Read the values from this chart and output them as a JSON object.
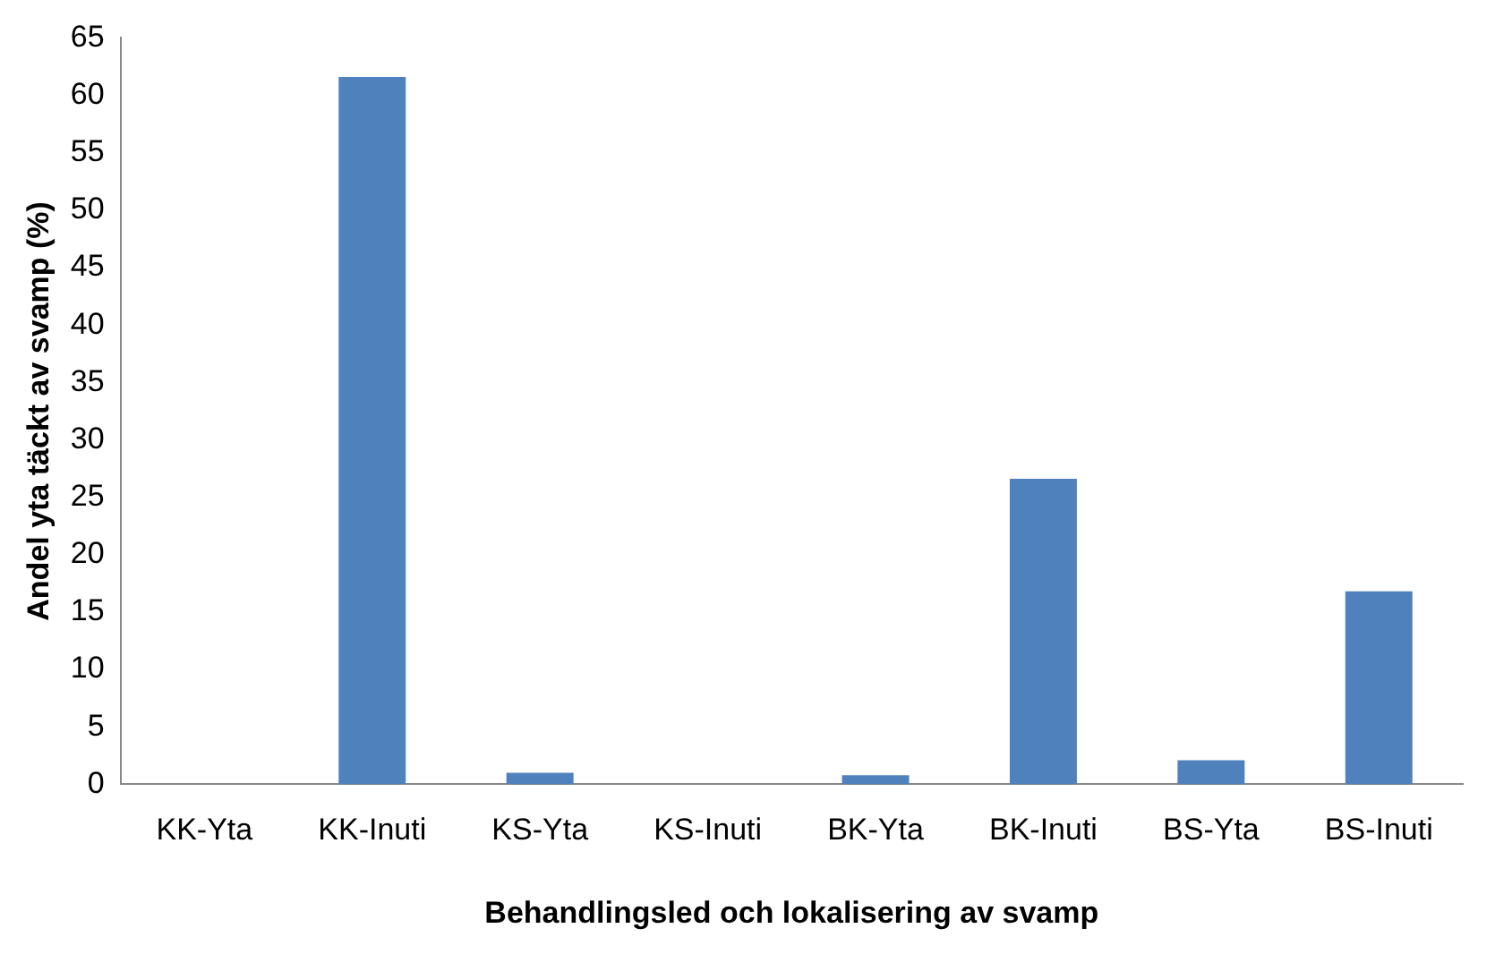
{
  "chart_data": {
    "type": "bar",
    "xlabel": "Behandlingsled och lokalisering av svamp",
    "ylabel": "Andel yta täckt av svamp (%)",
    "categories": [
      "KK-Yta",
      "KK-Inuti",
      "KS-Yta",
      "KS-Inuti",
      "BK-Yta",
      "BK-Inuti",
      "BS-Yta",
      "BS-Inuti"
    ],
    "values": [
      0,
      61.6,
      1.0,
      0,
      0.8,
      26.6,
      2.1,
      16.8
    ],
    "color": "#4f81bd",
    "ylim": [
      0,
      65
    ],
    "yticks": [
      0,
      5,
      10,
      15,
      20,
      25,
      30,
      35,
      40,
      45,
      50,
      55,
      60,
      65
    ],
    "grid": false
  }
}
